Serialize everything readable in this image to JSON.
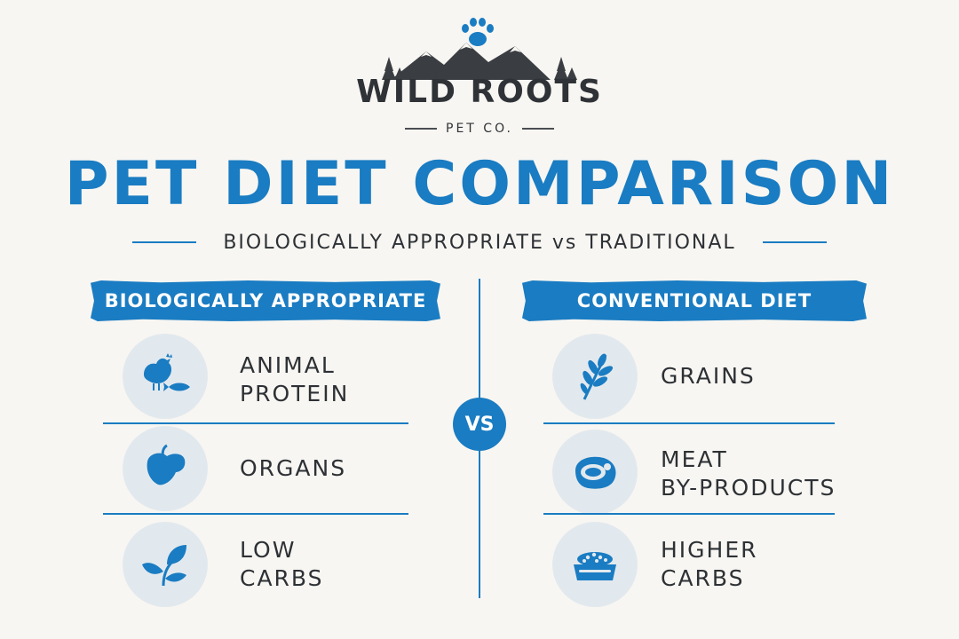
{
  "brand": {
    "name": "WILD ROOTS",
    "sub": "PET CO."
  },
  "title": "PET DIET COMPARISON",
  "subtitle": "BIOLOGICALLY APPROPRIATE vs TRADITIONAL",
  "vs_label": "VS",
  "left": {
    "header": "BIOLOGICALLY APPROPRIATE",
    "items": [
      {
        "label": "ANIMAL\nPROTEIN",
        "icon": "chicken-fish-icon"
      },
      {
        "label": "ORGANS",
        "icon": "liver-icon"
      },
      {
        "label": "LOW\nCARBS",
        "icon": "leaves-icon"
      }
    ]
  },
  "right": {
    "header": "CONVENTIONAL DIET",
    "items": [
      {
        "label": "GRAINS",
        "icon": "wheat-icon"
      },
      {
        "label": "MEAT\nBY-PRODUCTS",
        "icon": "meat-steak-icon"
      },
      {
        "label": "HIGHER\nCARBS",
        "icon": "kibble-bowl-icon"
      }
    ]
  },
  "colors": {
    "accent": "#1a7cc2",
    "background": "#f8f6f2",
    "text": "#2d3135",
    "icon_circle": "#e2e9ee"
  }
}
